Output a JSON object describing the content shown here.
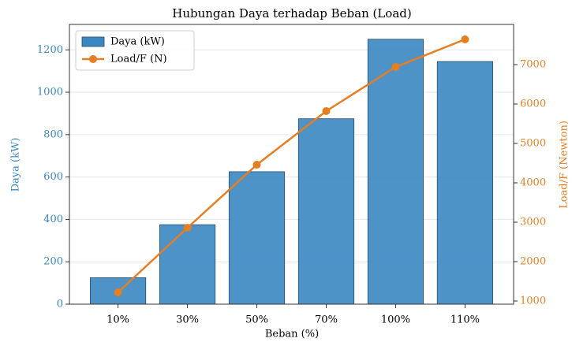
{
  "chart_data": {
    "type": "bar_line",
    "title": "Hubungan Daya terhadap Beban (Load)",
    "x_label": "Beban (%)",
    "y_label": "Daya (kW)",
    "y2_label": "Load/F (Newton)",
    "categories": [
      "10%",
      "30%",
      "50%",
      "70%",
      "100%",
      "110%"
    ],
    "series": [
      {
        "name": "Daya (kW)",
        "type": "bar",
        "color": "#3a87c2",
        "values": [
          125,
          375,
          625,
          875,
          1250,
          1145
        ]
      },
      {
        "name": "Load/F (N)",
        "type": "line",
        "axis": "y2",
        "color": "#e67e22",
        "values": [
          1220,
          2860,
          4460,
          5820,
          6940,
          7640
        ]
      }
    ],
    "ylim": [
      0,
      1320
    ],
    "yticks": [
      0,
      200,
      400,
      600,
      800,
      1000,
      1200
    ],
    "y2lim": [
      920,
      8020
    ],
    "y2ticks": [
      1000,
      2000,
      3000,
      4000,
      5000,
      6000,
      7000
    ],
    "y_color": "#3a87c2",
    "y2_color": "#e67e22",
    "grid": true,
    "legend": "upper-left"
  }
}
